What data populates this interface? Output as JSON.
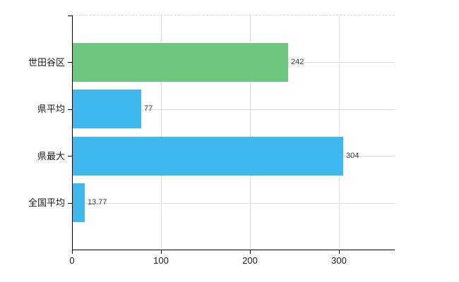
{
  "chart_data": {
    "type": "bar",
    "orientation": "horizontal",
    "title": "",
    "xlabel": "",
    "ylabel": "",
    "categories": [
      "世田谷区",
      "県平均",
      "県最大",
      "全国平均"
    ],
    "values": [
      242,
      77,
      304,
      13.77
    ],
    "value_labels": [
      "242",
      "77",
      "304",
      "13.77"
    ],
    "x_ticks": [
      0,
      100,
      200,
      300
    ],
    "x_tick_labels": [
      "0",
      "100",
      "200",
      "300"
    ],
    "xlim": [
      0,
      363
    ],
    "grid": true,
    "legend": false,
    "colors": {
      "bar_highlight": "#6cc67e",
      "bar_default": "#3fb8ee",
      "bar_colors": [
        "#6cc67e",
        "#3fb8ee",
        "#3fb8ee",
        "#3fb8ee"
      ],
      "gridline": "#dadedb",
      "axis": "#000000",
      "value_label_text": "#3c3c3c",
      "tick_label_text": "#1a1a1a"
    }
  }
}
